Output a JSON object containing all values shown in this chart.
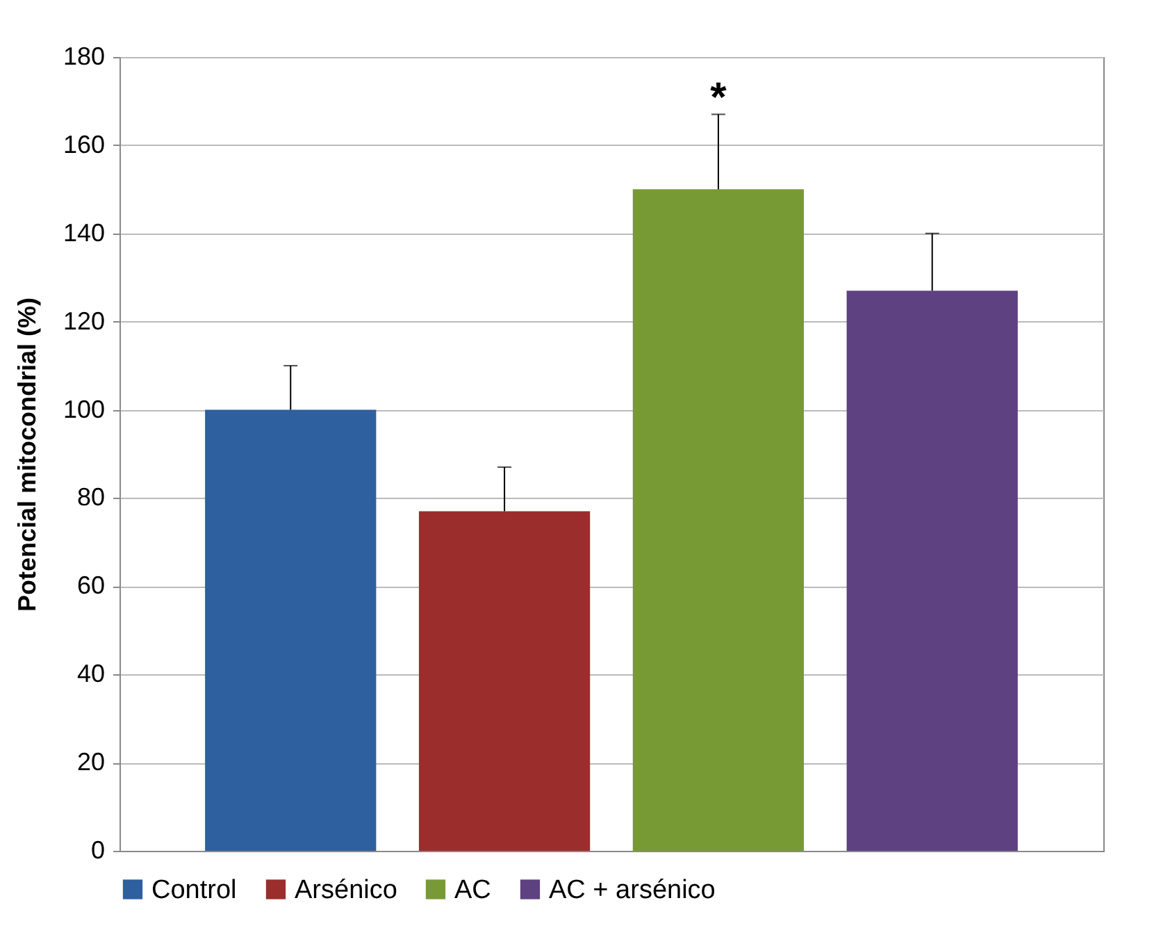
{
  "chart_data": {
    "type": "bar",
    "ylabel": "Potencial mitocondrial (%)",
    "categories": [
      null
    ],
    "series": [
      {
        "name": "Control",
        "color": "#2e5f9e",
        "values": [
          100
        ],
        "errors": [
          [
            100,
            110
          ]
        ]
      },
      {
        "name": "Arsénico",
        "color": "#9b2d2d",
        "values": [
          77
        ],
        "errors": [
          [
            77,
            87
          ]
        ]
      },
      {
        "name": "AC",
        "color": "#789a35",
        "values": [
          150
        ],
        "errors": [
          [
            150,
            167
          ]
        ]
      },
      {
        "name": "AC + arsénico",
        "color": "#5d4180",
        "values": [
          127
        ],
        "errors": [
          [
            127,
            140
          ]
        ]
      }
    ],
    "ylim": [
      0,
      180
    ],
    "yticks": [
      0,
      20,
      40,
      60,
      80,
      100,
      120,
      140,
      160,
      180
    ],
    "grid": "y",
    "legend": "bottom",
    "tick_labels": "y",
    "annotations": [
      "*"
    ]
  }
}
